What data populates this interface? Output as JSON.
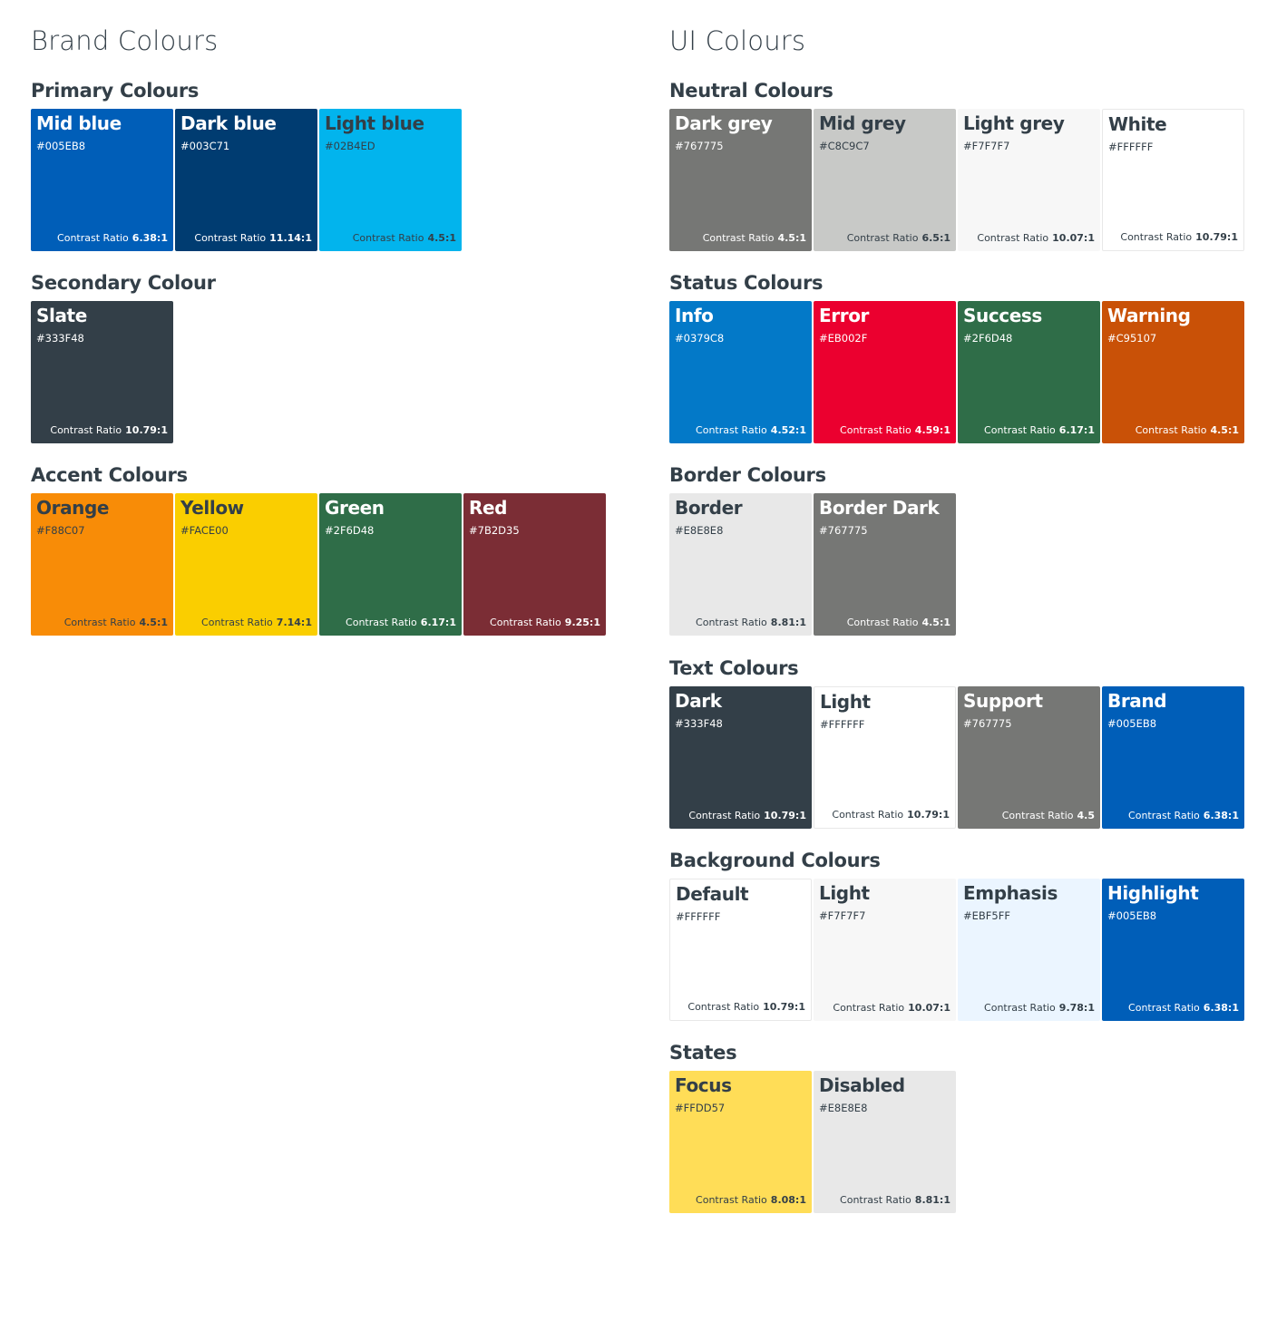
{
  "brand": {
    "title": "Brand Colours",
    "sections": [
      {
        "title": "Primary Colours",
        "swatches": [
          {
            "name": "Mid blue",
            "hex": "#005EB8",
            "ratio_label": "Contrast Ratio",
            "ratio": "6.38:1",
            "bg": "#005EB8",
            "fg": "#FFFFFF"
          },
          {
            "name": "Dark blue",
            "hex": "#003C71",
            "ratio_label": "Contrast Ratio",
            "ratio": "11.14:1",
            "bg": "#003C71",
            "fg": "#FFFFFF"
          },
          {
            "name": "Light blue",
            "hex": "#02B4ED",
            "ratio_label": "Contrast Ratio",
            "ratio": "4.5:1",
            "bg": "#02B4ED",
            "fg": "#333F48"
          }
        ]
      },
      {
        "title": "Secondary Colour",
        "swatches": [
          {
            "name": "Slate",
            "hex": "#333F48",
            "ratio_label": "Contrast Ratio",
            "ratio": "10.79:1",
            "bg": "#333F48",
            "fg": "#FFFFFF"
          }
        ]
      },
      {
        "title": "Accent Colours",
        "swatches": [
          {
            "name": "Orange",
            "hex": "#F88C07",
            "ratio_label": "Contrast Ratio",
            "ratio": "4.5:1",
            "bg": "#F88C07",
            "fg": "#333F48"
          },
          {
            "name": "Yellow",
            "hex": "#FACE00",
            "ratio_label": "Contrast Ratio",
            "ratio": "7.14:1",
            "bg": "#FACE00",
            "fg": "#333F48"
          },
          {
            "name": "Green",
            "hex": "#2F6D48",
            "ratio_label": "Contrast Ratio",
            "ratio": "6.17:1",
            "bg": "#2F6D48",
            "fg": "#FFFFFF"
          },
          {
            "name": "Red",
            "hex": "#7B2D35",
            "ratio_label": "Contrast Ratio",
            "ratio": "9.25:1",
            "bg": "#7B2D35",
            "fg": "#FFFFFF"
          }
        ]
      }
    ]
  },
  "ui": {
    "title": "UI Colours",
    "sections": [
      {
        "title": "Neutral Colours",
        "swatches": [
          {
            "name": "Dark grey",
            "hex": "#767775",
            "ratio_label": "Contrast Ratio",
            "ratio": "4.5:1",
            "bg": "#767775",
            "fg": "#FFFFFF"
          },
          {
            "name": "Mid grey",
            "hex": "#C8C9C7",
            "ratio_label": "Contrast Ratio",
            "ratio": "6.5:1",
            "bg": "#C8C9C7",
            "fg": "#333F48"
          },
          {
            "name": "Light grey",
            "hex": "#F7F7F7",
            "ratio_label": "Contrast Ratio",
            "ratio": "10.07:1",
            "bg": "#F7F7F7",
            "fg": "#333F48"
          },
          {
            "name": "White",
            "hex": "#FFFFFF",
            "ratio_label": "Contrast Ratio",
            "ratio": "10.79:1",
            "bg": "#FFFFFF",
            "fg": "#333F48",
            "bordered": true
          }
        ]
      },
      {
        "title": "Status Colours",
        "swatches": [
          {
            "name": "Info",
            "hex": "#0379C8",
            "ratio_label": "Contrast Ratio",
            "ratio": "4.52:1",
            "bg": "#0379C8",
            "fg": "#FFFFFF"
          },
          {
            "name": "Error",
            "hex": "#EB002F",
            "ratio_label": "Contrast Ratio",
            "ratio": "4.59:1",
            "bg": "#EB002F",
            "fg": "#FFFFFF"
          },
          {
            "name": "Success",
            "hex": "#2F6D48",
            "ratio_label": "Contrast Ratio",
            "ratio": "6.17:1",
            "bg": "#2F6D48",
            "fg": "#FFFFFF"
          },
          {
            "name": "Warning",
            "hex": "#C95107",
            "ratio_label": "Contrast Ratio",
            "ratio": "4.5:1",
            "bg": "#C95107",
            "fg": "#FFFFFF"
          }
        ]
      },
      {
        "title": "Border Colours",
        "swatches": [
          {
            "name": "Border",
            "hex": "#E8E8E8",
            "ratio_label": "Contrast Ratio",
            "ratio": "8.81:1",
            "bg": "#E8E8E8",
            "fg": "#333F48"
          },
          {
            "name": "Border Dark",
            "hex": "#767775",
            "ratio_label": "Contrast Ratio",
            "ratio": "4.5:1",
            "bg": "#767775",
            "fg": "#FFFFFF"
          }
        ]
      },
      {
        "title": "Text Colours",
        "swatches": [
          {
            "name": "Dark",
            "hex": "#333F48",
            "ratio_label": "Contrast Ratio",
            "ratio": "10.79:1",
            "bg": "#333F48",
            "fg": "#FFFFFF"
          },
          {
            "name": "Light",
            "hex": "#FFFFFF",
            "ratio_label": "Contrast Ratio",
            "ratio": "10.79:1",
            "bg": "#FFFFFF",
            "fg": "#333F48",
            "bordered": true
          },
          {
            "name": "Support",
            "hex": "#767775",
            "ratio_label": "Contrast Ratio",
            "ratio": "4.5",
            "bg": "#767775",
            "fg": "#FFFFFF"
          },
          {
            "name": "Brand",
            "hex": "#005EB8",
            "ratio_label": "Contrast Ratio",
            "ratio": "6.38:1",
            "bg": "#005EB8",
            "fg": "#FFFFFF"
          }
        ]
      },
      {
        "title": "Background Colours",
        "swatches": [
          {
            "name": "Default",
            "hex": "#FFFFFF",
            "ratio_label": "Contrast Ratio",
            "ratio": "10.79:1",
            "bg": "#FFFFFF",
            "fg": "#333F48",
            "bordered": true
          },
          {
            "name": "Light",
            "hex": "#F7F7F7",
            "ratio_label": "Contrast Ratio",
            "ratio": "10.07:1",
            "bg": "#F7F7F7",
            "fg": "#333F48"
          },
          {
            "name": "Emphasis",
            "hex": "#EBF5FF",
            "ratio_label": "Contrast Ratio",
            "ratio": "9.78:1",
            "bg": "#EBF5FF",
            "fg": "#333F48"
          },
          {
            "name": "Highlight",
            "hex": "#005EB8",
            "ratio_label": "Contrast Ratio",
            "ratio": "6.38:1",
            "bg": "#005EB8",
            "fg": "#FFFFFF"
          }
        ]
      },
      {
        "title": "States",
        "swatches": [
          {
            "name": "Focus",
            "hex": "#FFDD57",
            "ratio_label": "Contrast Ratio",
            "ratio": "8.08:1",
            "bg": "#FFDD57",
            "fg": "#333F48"
          },
          {
            "name": "Disabled",
            "hex": "#E8E8E8",
            "ratio_label": "Contrast Ratio",
            "ratio": "8.81:1",
            "bg": "#E8E8E8",
            "fg": "#333F48"
          }
        ]
      }
    ]
  }
}
